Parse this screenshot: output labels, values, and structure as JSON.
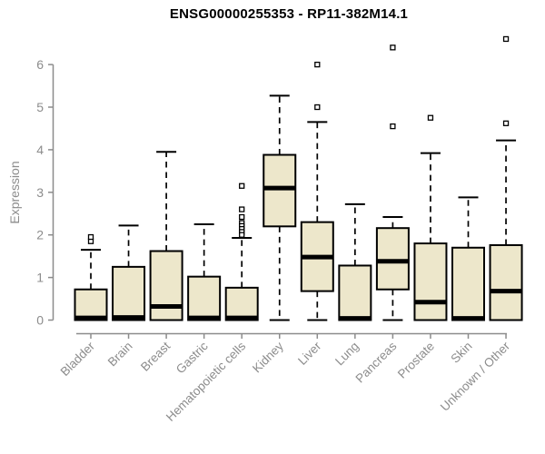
{
  "chart_data": {
    "type": "boxplot",
    "title": "ENSG00000255353 - RP11-382M14.1",
    "xlabel": "",
    "ylabel": "Expression",
    "ylim": [
      0,
      6
    ],
    "yticks": [
      0,
      1,
      2,
      3,
      4,
      5,
      6
    ],
    "grid": false,
    "legend": "none",
    "categories": [
      "Bladder",
      "Brain",
      "Breast",
      "Gastric",
      "Hematopoietic cells",
      "Kidney",
      "Liver",
      "Lung",
      "Pancreas",
      "Prostate",
      "Skin",
      "Unknown / Other"
    ],
    "series": [
      {
        "name": "Bladder",
        "q1": 0,
        "median": 0.05,
        "q3": 0.72,
        "whisker_low": 0,
        "whisker_high": 1.65,
        "outliers": [
          1.85,
          1.95
        ]
      },
      {
        "name": "Brain",
        "q1": 0,
        "median": 0.06,
        "q3": 1.25,
        "whisker_low": 0,
        "whisker_high": 2.22,
        "outliers": []
      },
      {
        "name": "Breast",
        "q1": 0,
        "median": 0.32,
        "q3": 1.62,
        "whisker_low": 0,
        "whisker_high": 3.95,
        "outliers": []
      },
      {
        "name": "Gastric",
        "q1": 0,
        "median": 0.05,
        "q3": 1.02,
        "whisker_low": 0,
        "whisker_high": 2.25,
        "outliers": []
      },
      {
        "name": "Hematopoietic cells",
        "q1": 0,
        "median": 0.05,
        "q3": 0.76,
        "whisker_low": 0,
        "whisker_high": 1.93,
        "outliers": [
          3.15,
          2.6,
          2.42,
          2.28,
          2.21,
          2.14,
          2.07,
          2.0
        ]
      },
      {
        "name": "Kidney",
        "q1": 2.2,
        "median": 3.1,
        "q3": 3.88,
        "whisker_low": 0,
        "whisker_high": 5.27,
        "outliers": []
      },
      {
        "name": "Liver",
        "q1": 0.68,
        "median": 1.48,
        "q3": 2.3,
        "whisker_low": 0,
        "whisker_high": 4.65,
        "outliers": [
          6.0,
          5.0
        ]
      },
      {
        "name": "Lung",
        "q1": 0,
        "median": 0.04,
        "q3": 1.28,
        "whisker_low": 0,
        "whisker_high": 2.72,
        "outliers": []
      },
      {
        "name": "Pancreas",
        "q1": 0.72,
        "median": 1.38,
        "q3": 2.16,
        "whisker_low": 0,
        "whisker_high": 2.42,
        "outliers": [
          6.4,
          4.55
        ]
      },
      {
        "name": "Prostate",
        "q1": 0,
        "median": 0.42,
        "q3": 1.8,
        "whisker_low": 0,
        "whisker_high": 3.92,
        "outliers": [
          4.75
        ]
      },
      {
        "name": "Skin",
        "q1": 0,
        "median": 0.04,
        "q3": 1.7,
        "whisker_low": 0,
        "whisker_high": 2.88,
        "outliers": []
      },
      {
        "name": "Unknown / Other",
        "q1": 0,
        "median": 0.68,
        "q3": 1.76,
        "whisker_low": 0,
        "whisker_high": 4.22,
        "outliers": [
          6.6,
          4.62
        ]
      }
    ],
    "colors": {
      "box_fill": "#EDE7CB",
      "box_stroke": "#000000",
      "whisker": "#000000",
      "median": "#000000",
      "outlier_fill": "#ffffff",
      "axis": "#8C8C8C",
      "tick_label": "#8C8C8C",
      "title": "#000000",
      "background": "#FFFFFF"
    }
  }
}
